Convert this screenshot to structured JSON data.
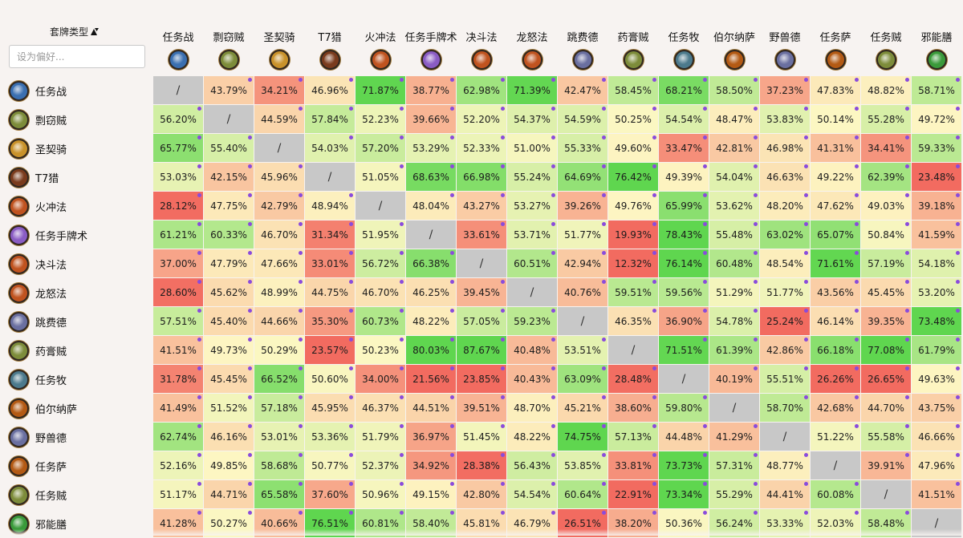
{
  "sidebar": {
    "deck_type_label": "套牌类型",
    "search_placeholder": "设为偏好..."
  },
  "decks": [
    {
      "name": "任务战",
      "icon": "warrior-quest-icon",
      "color": "#3a6fb0"
    },
    {
      "name": "剽窃贼",
      "icon": "rogue-icon",
      "color": "#7d8c3a"
    },
    {
      "name": "圣契骑",
      "icon": "paladin-icon",
      "color": "#c9922a"
    },
    {
      "name": "T7猎",
      "icon": "hunter-icon",
      "color": "#7a3b1c"
    },
    {
      "name": "火冲法",
      "icon": "mage-icon",
      "color": "#c0531f"
    },
    {
      "name": "任务手牌术",
      "icon": "warlock-quest-icon",
      "color": "#8a5cc4"
    },
    {
      "name": "决斗法",
      "icon": "mage-icon",
      "color": "#c0531f"
    },
    {
      "name": "龙怒法",
      "icon": "mage-icon",
      "color": "#c0531f"
    },
    {
      "name": "跳费德",
      "icon": "druid-icon",
      "color": "#6a6fa0"
    },
    {
      "name": "药膏贼",
      "icon": "rogue-icon",
      "color": "#7d8c3a"
    },
    {
      "name": "任务牧",
      "icon": "priest-quest-icon",
      "color": "#4c7a8c"
    },
    {
      "name": "伯尔纳萨",
      "icon": "shaman-icon",
      "color": "#b35a14"
    },
    {
      "name": "野兽德",
      "icon": "druid-icon",
      "color": "#6a6fa0"
    },
    {
      "name": "任务萨",
      "icon": "shaman-quest-icon",
      "color": "#b35a14"
    },
    {
      "name": "任务贼",
      "icon": "rogue-quest-icon",
      "color": "#7d8c3a"
    },
    {
      "name": "邪能膳",
      "icon": "demon-hunter-icon",
      "color": "#3a9a3a"
    }
  ],
  "matrix": [
    [
      "/",
      "43.79%",
      "34.21%",
      "46.96%",
      "71.87%",
      "38.77%",
      "62.98%",
      "71.39%",
      "42.47%",
      "58.45%",
      "68.21%",
      "58.50%",
      "37.23%",
      "47.83%",
      "48.82%",
      "58.71%"
    ],
    [
      "56.20%",
      "/",
      "44.59%",
      "57.84%",
      "52.23%",
      "39.66%",
      "52.20%",
      "54.37%",
      "54.59%",
      "50.25%",
      "54.54%",
      "48.47%",
      "53.83%",
      "50.14%",
      "55.28%",
      "49.72%"
    ],
    [
      "65.77%",
      "55.40%",
      "/",
      "54.03%",
      "57.20%",
      "53.29%",
      "52.33%",
      "51.00%",
      "55.33%",
      "49.60%",
      "33.47%",
      "42.81%",
      "46.98%",
      "41.31%",
      "34.41%",
      "59.33%"
    ],
    [
      "53.03%",
      "42.15%",
      "45.96%",
      "/",
      "51.05%",
      "68.63%",
      "66.98%",
      "55.24%",
      "64.69%",
      "76.42%",
      "49.39%",
      "54.04%",
      "46.63%",
      "49.22%",
      "62.39%",
      "23.48%"
    ],
    [
      "28.12%",
      "47.75%",
      "42.79%",
      "48.94%",
      "/",
      "48.04%",
      "43.27%",
      "53.27%",
      "39.26%",
      "49.76%",
      "65.99%",
      "53.62%",
      "48.20%",
      "47.62%",
      "49.03%",
      "39.18%"
    ],
    [
      "61.21%",
      "60.33%",
      "46.70%",
      "31.34%",
      "51.95%",
      "/",
      "33.61%",
      "53.71%",
      "51.77%",
      "19.93%",
      "78.43%",
      "55.48%",
      "63.02%",
      "65.07%",
      "50.84%",
      "41.59%"
    ],
    [
      "37.00%",
      "47.79%",
      "47.66%",
      "33.01%",
      "56.72%",
      "66.38%",
      "/",
      "60.51%",
      "42.94%",
      "12.32%",
      "76.14%",
      "60.48%",
      "48.54%",
      "71.61%",
      "57.19%",
      "54.18%"
    ],
    [
      "28.60%",
      "45.62%",
      "48.99%",
      "44.75%",
      "46.70%",
      "46.25%",
      "39.45%",
      "/",
      "40.76%",
      "59.51%",
      "59.56%",
      "51.29%",
      "51.77%",
      "43.56%",
      "45.45%",
      "53.20%"
    ],
    [
      "57.51%",
      "45.40%",
      "44.66%",
      "35.30%",
      "60.73%",
      "48.22%",
      "57.05%",
      "59.23%",
      "/",
      "46.35%",
      "36.90%",
      "54.78%",
      "25.24%",
      "46.14%",
      "39.35%",
      "73.48%"
    ],
    [
      "41.51%",
      "49.73%",
      "50.29%",
      "23.57%",
      "50.23%",
      "80.03%",
      "87.67%",
      "40.48%",
      "53.51%",
      "/",
      "71.51%",
      "61.39%",
      "42.86%",
      "66.18%",
      "77.08%",
      "61.79%"
    ],
    [
      "31.78%",
      "45.45%",
      "66.52%",
      "50.60%",
      "34.00%",
      "21.56%",
      "23.85%",
      "40.43%",
      "63.09%",
      "28.48%",
      "/",
      "40.19%",
      "55.51%",
      "26.26%",
      "26.65%",
      "49.63%"
    ],
    [
      "41.49%",
      "51.52%",
      "57.18%",
      "45.95%",
      "46.37%",
      "44.51%",
      "39.51%",
      "48.70%",
      "45.21%",
      "38.60%",
      "59.80%",
      "/",
      "58.70%",
      "42.68%",
      "44.70%",
      "43.75%"
    ],
    [
      "62.74%",
      "46.16%",
      "53.01%",
      "53.36%",
      "51.79%",
      "36.97%",
      "51.45%",
      "48.22%",
      "74.75%",
      "57.13%",
      "44.48%",
      "41.29%",
      "/",
      "51.22%",
      "55.58%",
      "46.66%"
    ],
    [
      "52.16%",
      "49.85%",
      "58.68%",
      "50.77%",
      "52.37%",
      "34.92%",
      "28.38%",
      "56.43%",
      "53.85%",
      "33.81%",
      "73.73%",
      "57.31%",
      "48.77%",
      "/",
      "39.91%",
      "47.96%"
    ],
    [
      "51.17%",
      "44.71%",
      "65.58%",
      "37.60%",
      "50.96%",
      "49.15%",
      "42.80%",
      "54.54%",
      "60.64%",
      "22.91%",
      "73.34%",
      "55.29%",
      "44.41%",
      "60.08%",
      "/",
      "41.51%"
    ],
    [
      "41.28%",
      "50.27%",
      "40.66%",
      "76.51%",
      "60.81%",
      "58.40%",
      "45.81%",
      "46.79%",
      "26.51%",
      "38.20%",
      "50.36%",
      "56.24%",
      "53.33%",
      "52.03%",
      "58.48%",
      "/"
    ]
  ],
  "colors": {
    "self_cell": "#c8c8c8",
    "marker_dot": "#8a4bdc",
    "low": "#f26b60",
    "mid": "#fdf7c3",
    "high": "#5fd64f"
  }
}
